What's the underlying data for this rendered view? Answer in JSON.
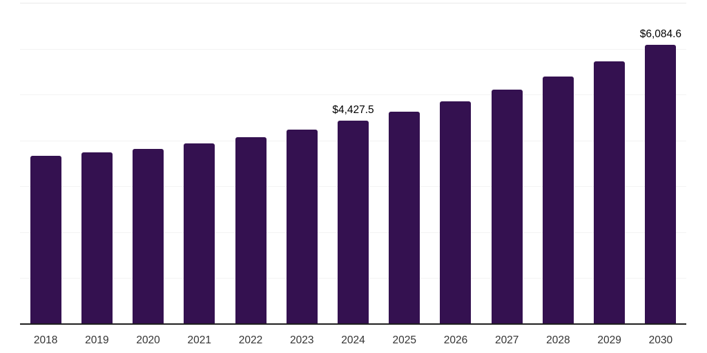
{
  "chart_data": {
    "type": "bar",
    "title": "",
    "xlabel": "",
    "ylabel": "",
    "categories": [
      "2018",
      "2019",
      "2020",
      "2021",
      "2022",
      "2023",
      "2024",
      "2025",
      "2026",
      "2027",
      "2028",
      "2029",
      "2030"
    ],
    "values": [
      3670,
      3745,
      3820,
      3940,
      4075,
      4240,
      4427.5,
      4620,
      4855,
      5110,
      5395,
      5725,
      6084.6
    ],
    "annotations": [
      {
        "index": 6,
        "text": "$4,427.5"
      },
      {
        "index": 12,
        "text": "$6,084.6"
      }
    ],
    "ylim": [
      0,
      7000
    ],
    "gridline_step": 1000,
    "grid": true,
    "y_axis_labels": "none",
    "legend": "none"
  },
  "colors": {
    "bar": "#341150",
    "gridline": "#f3f3f3",
    "top_gridline": "#e9e9e9",
    "axis_line": "#1f1f1f",
    "tick_label": "#333333",
    "data_label": "#000000",
    "background": "#ffffff"
  }
}
